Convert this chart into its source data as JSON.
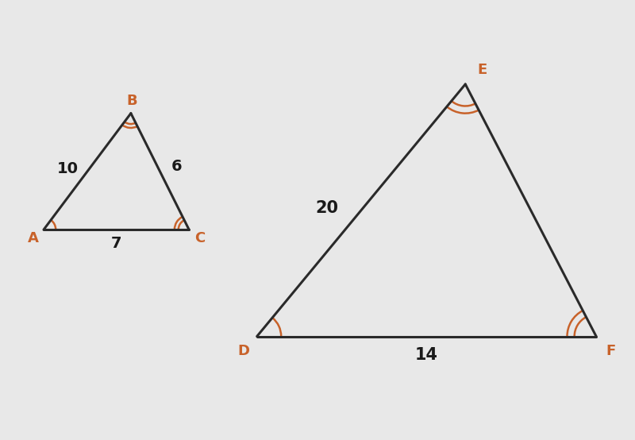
{
  "background_color": "#e8e8e8",
  "line_color": "#2a2a2a",
  "angle_arc_color": "#c8622a",
  "label_color_vertex": "#c8622a",
  "label_color_side": "#1a1a1a",
  "triangle_ABC": {
    "A": [
      0.8,
      2.8
    ],
    "B": [
      2.6,
      5.2
    ],
    "C": [
      3.8,
      2.8
    ],
    "label_A": "A",
    "label_B": "B",
    "label_C": "C",
    "side_AB": "10",
    "side_BC": "6",
    "side_AC": "7"
  },
  "triangle_DEF": {
    "D": [
      5.2,
      0.6
    ],
    "E": [
      9.5,
      5.8
    ],
    "F": [
      12.2,
      0.6
    ],
    "label_D": "D",
    "label_E": "E",
    "label_F": "F",
    "side_DE": "20",
    "side_EF": "",
    "side_DF": "14"
  },
  "figsize": [
    8.0,
    5.54
  ],
  "dpi": 100
}
